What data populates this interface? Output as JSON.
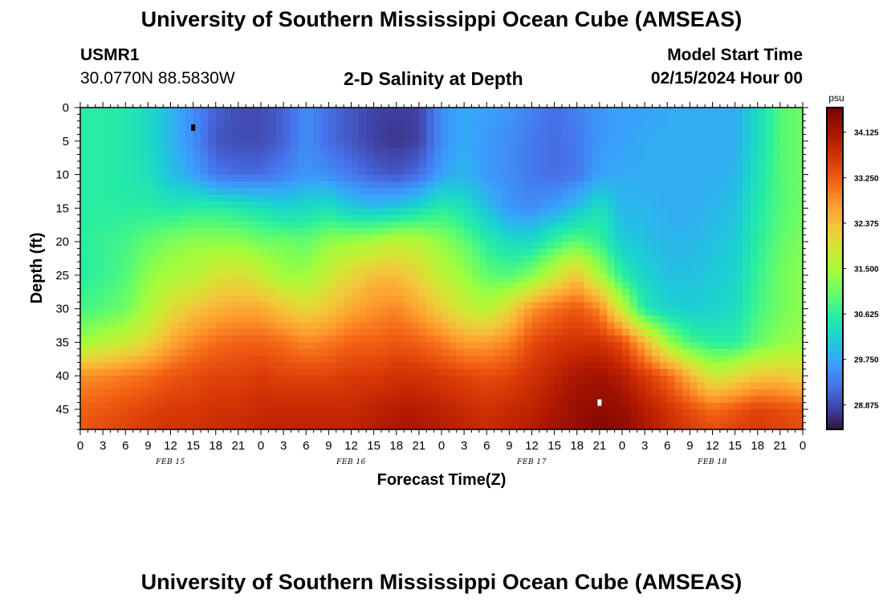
{
  "header": {
    "title": "University of Southern Mississippi Ocean Cube (AMSEAS)",
    "station_id": "USMR1",
    "coordinates": "30.0770N  88.5830W",
    "subtitle": "2-D Salinity at Depth",
    "model_start_label": "Model Start Time",
    "model_start_value": "02/15/2024 Hour 00"
  },
  "footer": {
    "title": "University of Southern Mississippi Ocean Cube (AMSEAS)"
  },
  "chart_data": {
    "type": "heatmap",
    "title": "2-D Salinity at Depth",
    "xlabel": "Forecast Time(Z)",
    "ylabel": "Depth (ft)",
    "x_hours": [
      0,
      3,
      6,
      9,
      12,
      15,
      18,
      21,
      24,
      27,
      30,
      33,
      36,
      39,
      42,
      45,
      48,
      51,
      54,
      57,
      60,
      63,
      66,
      69,
      72,
      75,
      78,
      81,
      84,
      87,
      90,
      93,
      96
    ],
    "x_tick_labels": [
      "0",
      "3",
      "6",
      "9",
      "12",
      "15",
      "18",
      "21",
      "0",
      "3",
      "6",
      "9",
      "12",
      "15",
      "18",
      "21",
      "0",
      "3",
      "6",
      "9",
      "12",
      "15",
      "18",
      "21",
      "0",
      "3",
      "6",
      "9",
      "12",
      "15",
      "18",
      "21",
      "0"
    ],
    "xlim": [
      0,
      96
    ],
    "y_ticks": [
      0,
      5,
      10,
      15,
      20,
      25,
      30,
      35,
      40,
      45
    ],
    "ylim": [
      0,
      48
    ],
    "date_labels": [
      {
        "text": "FEB 15",
        "hour": 12
      },
      {
        "text": "FEB 16",
        "hour": 36
      },
      {
        "text": "FEB 17",
        "hour": 60
      },
      {
        "text": "FEB 18",
        "hour": 84
      }
    ],
    "grid_depths_ft": [
      0,
      5,
      10,
      15,
      20,
      25,
      30,
      35,
      40,
      45,
      48
    ],
    "salinity_grid_psu": [
      [
        30.6,
        30.6,
        30.5,
        30.3,
        29.9,
        29.5,
        29.1,
        28.9,
        28.9,
        29.1,
        29.5,
        29.2,
        29.0,
        28.8,
        28.8,
        28.8,
        29.5,
        29.8,
        29.7,
        29.6,
        29.4,
        29.2,
        29.4,
        29.6,
        29.7,
        29.7,
        29.8,
        29.8,
        29.8,
        29.8,
        30.3,
        30.9,
        31.1
      ],
      [
        30.6,
        30.6,
        30.5,
        30.3,
        29.9,
        29.5,
        29.0,
        28.9,
        28.9,
        29.1,
        29.5,
        29.2,
        29.0,
        28.8,
        28.7,
        28.8,
        29.5,
        29.8,
        29.6,
        29.5,
        29.3,
        29.2,
        29.3,
        29.6,
        29.7,
        29.8,
        29.8,
        29.8,
        29.8,
        29.8,
        30.3,
        30.9,
        31.1
      ],
      [
        30.6,
        30.6,
        30.5,
        30.4,
        30.0,
        29.7,
        29.3,
        29.2,
        29.2,
        29.4,
        29.6,
        29.5,
        29.3,
        29.1,
        29.0,
        29.2,
        29.7,
        29.9,
        29.6,
        29.5,
        29.3,
        29.2,
        29.3,
        29.7,
        29.8,
        29.8,
        29.8,
        29.8,
        29.8,
        29.9,
        30.4,
        30.9,
        31.1
      ],
      [
        30.6,
        30.6,
        30.6,
        30.6,
        30.5,
        30.6,
        30.6,
        30.5,
        30.4,
        30.2,
        30.3,
        30.4,
        30.1,
        30.0,
        30.1,
        30.3,
        30.6,
        30.4,
        30.0,
        29.6,
        29.5,
        29.7,
        30.0,
        30.4,
        29.9,
        29.9,
        29.8,
        29.8,
        29.9,
        30.0,
        30.5,
        30.9,
        31.1
      ],
      [
        30.6,
        30.7,
        30.8,
        31.0,
        31.2,
        31.3,
        31.3,
        31.3,
        31.1,
        31.1,
        31.0,
        31.3,
        31.4,
        31.5,
        31.7,
        31.6,
        31.3,
        31.0,
        30.6,
        30.3,
        30.3,
        30.7,
        31.0,
        30.7,
        30.1,
        30.0,
        29.9,
        29.9,
        30.0,
        30.1,
        30.6,
        31.0,
        31.2
      ],
      [
        30.6,
        30.7,
        30.9,
        31.3,
        31.5,
        31.6,
        31.9,
        32.0,
        31.8,
        31.4,
        31.4,
        31.8,
        32.1,
        32.4,
        32.4,
        32.1,
        31.7,
        31.4,
        31.0,
        30.9,
        31.2,
        31.8,
        32.3,
        31.5,
        30.6,
        30.2,
        30.0,
        30.0,
        30.1,
        30.2,
        30.7,
        31.1,
        31.3
      ],
      [
        30.8,
        30.9,
        31.1,
        31.5,
        32.0,
        32.3,
        32.5,
        32.6,
        32.6,
        32.3,
        32.1,
        32.3,
        32.6,
        32.8,
        32.9,
        32.6,
        32.2,
        31.8,
        31.6,
        32.1,
        32.8,
        33.1,
        33.3,
        32.9,
        31.7,
        30.5,
        30.2,
        30.1,
        30.2,
        30.3,
        30.8,
        31.1,
        31.3
      ],
      [
        31.4,
        31.6,
        31.8,
        32.1,
        32.6,
        32.9,
        33.1,
        33.2,
        33.2,
        33.1,
        32.9,
        33.0,
        33.2,
        33.2,
        33.3,
        33.2,
        33.0,
        32.7,
        32.7,
        32.9,
        33.4,
        33.6,
        33.7,
        33.7,
        33.4,
        32.5,
        31.4,
        30.8,
        30.6,
        30.6,
        31.0,
        31.3,
        31.4
      ],
      [
        32.8,
        32.9,
        33.0,
        33.1,
        33.3,
        33.4,
        33.5,
        33.5,
        33.6,
        33.5,
        33.5,
        33.5,
        33.6,
        33.6,
        33.7,
        33.7,
        33.6,
        33.5,
        33.4,
        33.5,
        33.7,
        33.9,
        34.1,
        34.2,
        34.0,
        33.6,
        33.2,
        32.5,
        31.8,
        32.0,
        32.3,
        32.3,
        32.1
      ],
      [
        33.2,
        33.3,
        33.4,
        33.5,
        33.6,
        33.6,
        33.7,
        33.7,
        33.8,
        33.8,
        33.8,
        33.8,
        33.8,
        33.9,
        34.0,
        34.0,
        33.9,
        33.8,
        33.7,
        33.8,
        33.9,
        34.1,
        34.3,
        34.4,
        34.3,
        34.0,
        33.7,
        33.4,
        33.1,
        33.3,
        33.5,
        33.4,
        33.3
      ],
      [
        33.3,
        33.4,
        33.5,
        33.6,
        33.7,
        33.7,
        33.8,
        33.8,
        33.9,
        33.9,
        33.9,
        33.9,
        33.9,
        34.0,
        34.1,
        34.1,
        34.0,
        33.9,
        33.8,
        33.9,
        34.0,
        34.2,
        34.3,
        34.5,
        34.4,
        34.1,
        33.8,
        33.6,
        33.4,
        33.5,
        33.6,
        33.5,
        33.4
      ]
    ],
    "markers": [
      {
        "hour": 15,
        "depth": 3,
        "color": "#000000"
      },
      {
        "hour": 69,
        "depth": 44,
        "color": "#ffffff"
      }
    ],
    "colorbar": {
      "unit": "psu",
      "range": [
        28.4,
        34.6
      ],
      "ticks": [
        "34.125",
        "33.250",
        "32.375",
        "31.500",
        "30.625",
        "29.750",
        "28.875"
      ],
      "tick_values": [
        34.125,
        33.25,
        32.375,
        31.5,
        30.625,
        29.75,
        28.875
      ]
    }
  }
}
